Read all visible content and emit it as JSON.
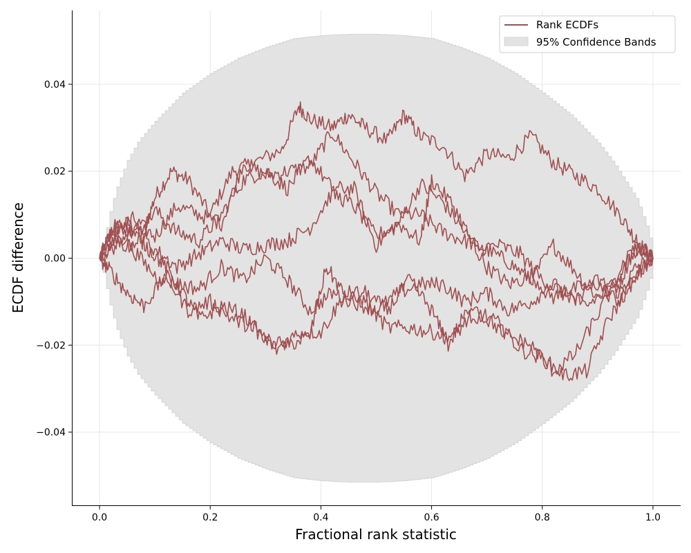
{
  "chart_data": {
    "type": "line",
    "title": "",
    "xlabel": "Fractional rank statistic",
    "ylabel": "ECDF difference",
    "xlim": [
      -0.05,
      1.05
    ],
    "ylim": [
      -0.057,
      0.057
    ],
    "x_ticks": [
      0.0,
      0.2,
      0.4,
      0.6,
      0.8,
      1.0
    ],
    "x_tick_labels": [
      "0.0",
      "0.2",
      "0.4",
      "0.6",
      "0.8",
      "1.0"
    ],
    "y_ticks": [
      -0.04,
      -0.02,
      0.0,
      0.02,
      0.04
    ],
    "y_tick_labels": [
      "−0.04",
      "−0.02",
      "0.00",
      "0.02",
      "0.04"
    ],
    "grid": true,
    "legend": {
      "placement": "top-right",
      "entries": [
        {
          "label": "Rank ECDFs",
          "kind": "line"
        },
        {
          "label": "95% Confidence Bands",
          "kind": "patch"
        }
      ]
    },
    "colors": {
      "series": "#a05050",
      "band_fill": "#e3e3e3",
      "band_edge": "#d4d4d4",
      "grid": "#e6e6e6"
    },
    "band": {
      "description": "symmetric 95% band, stepped",
      "x": [
        0.0,
        0.005,
        0.01,
        0.02,
        0.03,
        0.05,
        0.07,
        0.1,
        0.15,
        0.2,
        0.25,
        0.3,
        0.35,
        0.4,
        0.45,
        0.5,
        0.55,
        0.6,
        0.65,
        0.7,
        0.75,
        0.8,
        0.85,
        0.9,
        0.93,
        0.95,
        0.97,
        0.98,
        0.99,
        0.995,
        1.0
      ],
      "upper": [
        0.0,
        0.0025,
        0.0055,
        0.0115,
        0.016,
        0.0225,
        0.027,
        0.0315,
        0.038,
        0.0425,
        0.046,
        0.0485,
        0.0505,
        0.0512,
        0.0515,
        0.0515,
        0.0512,
        0.0505,
        0.0485,
        0.046,
        0.0425,
        0.038,
        0.033,
        0.0265,
        0.0215,
        0.0175,
        0.0135,
        0.01,
        0.0065,
        0.004,
        0.0
      ]
    },
    "series": [
      {
        "x": [
          0.0,
          0.02,
          0.05,
          0.08,
          0.1,
          0.13,
          0.16,
          0.2,
          0.24,
          0.28,
          0.33,
          0.36,
          0.38,
          0.42,
          0.45,
          0.48,
          0.52,
          0.55,
          0.58,
          0.62,
          0.66,
          0.7,
          0.74,
          0.78,
          0.82,
          0.86,
          0.9,
          0.94,
          0.97,
          1.0
        ],
        "y": [
          0.0,
          0.006,
          0.008,
          0.006,
          0.014,
          0.02,
          0.018,
          0.01,
          0.02,
          0.022,
          0.025,
          0.035,
          0.032,
          0.03,
          0.033,
          0.03,
          0.027,
          0.033,
          0.028,
          0.026,
          0.019,
          0.024,
          0.023,
          0.028,
          0.022,
          0.019,
          0.016,
          0.01,
          0.004,
          0.0
        ]
      },
      {
        "x": [
          0.0,
          0.03,
          0.06,
          0.1,
          0.14,
          0.18,
          0.22,
          0.26,
          0.3,
          0.34,
          0.38,
          0.42,
          0.46,
          0.5,
          0.54,
          0.58,
          0.62,
          0.66,
          0.7,
          0.74,
          0.78,
          0.82,
          0.86,
          0.9,
          0.94,
          0.97,
          1.0
        ],
        "y": [
          0.0,
          0.007,
          0.009,
          0.005,
          0.012,
          0.01,
          0.008,
          0.022,
          0.019,
          0.02,
          0.021,
          0.029,
          0.022,
          0.015,
          0.01,
          0.01,
          0.006,
          0.004,
          0.002,
          -0.001,
          -0.005,
          0.003,
          -0.003,
          -0.009,
          -0.006,
          0.004,
          0.0
        ]
      },
      {
        "x": [
          0.0,
          0.03,
          0.06,
          0.1,
          0.14,
          0.18,
          0.22,
          0.26,
          0.3,
          0.34,
          0.38,
          0.42,
          0.46,
          0.5,
          0.54,
          0.58,
          0.62,
          0.66,
          0.7,
          0.74,
          0.78,
          0.82,
          0.86,
          0.9,
          0.94,
          0.97,
          1.0
        ],
        "y": [
          0.0,
          0.006,
          0.003,
          0.011,
          0.006,
          0.004,
          0.01,
          0.018,
          0.02,
          0.016,
          0.023,
          0.016,
          0.016,
          0.003,
          0.008,
          0.017,
          0.013,
          0.006,
          -0.002,
          -0.006,
          -0.004,
          -0.009,
          -0.007,
          -0.006,
          -0.01,
          -0.004,
          0.0
        ]
      },
      {
        "x": [
          0.0,
          0.03,
          0.06,
          0.1,
          0.14,
          0.18,
          0.22,
          0.26,
          0.3,
          0.34,
          0.38,
          0.42,
          0.46,
          0.5,
          0.54,
          0.58,
          0.6,
          0.64,
          0.68,
          0.72,
          0.76,
          0.8,
          0.84,
          0.88,
          0.92,
          0.96,
          1.0
        ],
        "y": [
          0.0,
          0.003,
          0.007,
          0.002,
          -0.002,
          0.001,
          0.004,
          0.002,
          0.003,
          0.004,
          0.007,
          0.015,
          0.012,
          0.005,
          0.008,
          0.004,
          0.018,
          0.012,
          0.002,
          0.003,
          0.001,
          -0.005,
          -0.008,
          -0.011,
          -0.007,
          0.002,
          0.0
        ]
      },
      {
        "x": [
          0.0,
          0.03,
          0.06,
          0.1,
          0.14,
          0.18,
          0.22,
          0.26,
          0.3,
          0.34,
          0.38,
          0.42,
          0.46,
          0.5,
          0.54,
          0.58,
          0.62,
          0.66,
          0.7,
          0.74,
          0.78,
          0.82,
          0.86,
          0.9,
          0.94,
          0.97,
          1.0
        ],
        "y": [
          0.0,
          0.004,
          0.002,
          -0.004,
          -0.006,
          -0.007,
          -0.002,
          -0.005,
          0.0,
          -0.005,
          -0.012,
          -0.008,
          -0.01,
          -0.012,
          -0.008,
          -0.006,
          -0.006,
          -0.01,
          -0.008,
          -0.012,
          -0.01,
          -0.006,
          -0.01,
          -0.005,
          -0.008,
          -0.002,
          0.0
        ]
      },
      {
        "x": [
          0.0,
          0.02,
          0.05,
          0.08,
          0.12,
          0.16,
          0.2,
          0.24,
          0.28,
          0.32,
          0.36,
          0.4,
          0.44,
          0.48,
          0.52,
          0.56,
          0.6,
          0.64,
          0.68,
          0.72,
          0.76,
          0.8,
          0.84,
          0.88,
          0.92,
          0.96,
          1.0
        ],
        "y": [
          0.0,
          -0.003,
          -0.008,
          -0.011,
          -0.004,
          -0.012,
          -0.01,
          -0.014,
          -0.016,
          -0.021,
          -0.017,
          -0.017,
          -0.009,
          -0.01,
          -0.016,
          -0.016,
          -0.017,
          -0.018,
          -0.012,
          -0.015,
          -0.021,
          -0.023,
          -0.027,
          -0.026,
          -0.014,
          -0.006,
          0.0
        ]
      },
      {
        "x": [
          0.0,
          0.03,
          0.06,
          0.09,
          0.12,
          0.15,
          0.18,
          0.22,
          0.26,
          0.3,
          0.34,
          0.38,
          0.41,
          0.44,
          0.48,
          0.52,
          0.56,
          0.6,
          0.63,
          0.66,
          0.7,
          0.74,
          0.78,
          0.82,
          0.86,
          0.9,
          0.94,
          0.97,
          1.0
        ],
        "y": [
          0.0,
          0.008,
          0.006,
          0.002,
          -0.002,
          -0.008,
          -0.014,
          -0.011,
          -0.013,
          -0.019,
          -0.02,
          -0.018,
          -0.002,
          -0.008,
          -0.008,
          -0.012,
          -0.005,
          -0.012,
          -0.02,
          -0.013,
          -0.014,
          -0.018,
          -0.02,
          -0.026,
          -0.022,
          -0.013,
          -0.004,
          0.002,
          0.0
        ]
      }
    ]
  }
}
